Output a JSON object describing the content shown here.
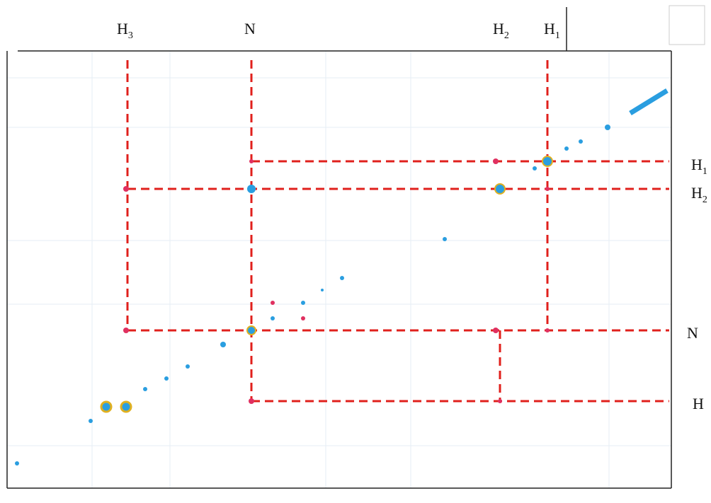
{
  "top_labels": [
    {
      "base": "H",
      "sub": "3"
    },
    {
      "base": "N"
    },
    {
      "base": "H",
      "sub": "2"
    },
    {
      "base": "H",
      "sub": "1"
    }
  ],
  "right_labels": [
    {
      "base": "H",
      "sub": "1"
    },
    {
      "base": "H",
      "sub": "2"
    },
    {
      "base": "N"
    },
    {
      "base": "H"
    }
  ]
}
